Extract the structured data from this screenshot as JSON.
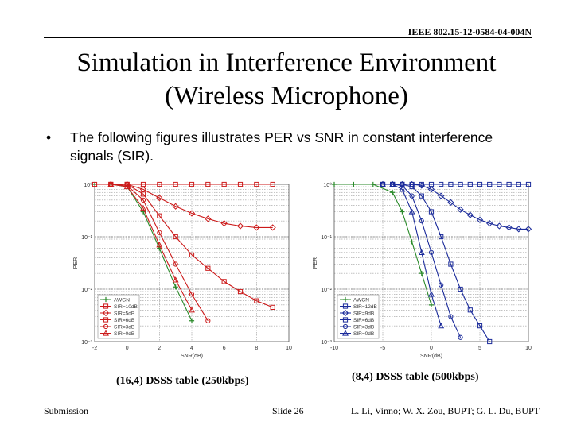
{
  "header": {
    "doc_id": "IEEE 802.15-12-0584-04-004N"
  },
  "title": {
    "line1": "Simulation in Interference Environment",
    "line2": "(Wireless Microphone)"
  },
  "bullet": {
    "symbol": "•",
    "text": "The following figures illustrates PER vs SNR in constant interference signals (SIR)."
  },
  "captions": {
    "left": "(16,4) DSSS table (250kbps)",
    "right": "(8,4) DSSS table (500kbps)"
  },
  "footer": {
    "left": "Submission",
    "center": "Slide 26",
    "right": "L. Li, Vinno; W. X. Zou, BUPT; G. L. Du, BUPT"
  },
  "chart_data": [
    {
      "type": "line",
      "xlabel": "SNR(dB)",
      "ylabel": "PER",
      "xlim": [
        -2,
        10
      ],
      "ylim": [
        0.001,
        1
      ],
      "log_y": true,
      "xticks": [
        "-2",
        "0",
        "2",
        "4",
        "6",
        "8",
        "10"
      ],
      "yticks": [
        "10⁰",
        "10⁻¹",
        "10⁻²",
        "10⁻³"
      ],
      "legend_position": "bottom-left",
      "series": [
        {
          "name": "AWGN",
          "color": "#2a8a2a",
          "marker": "plus",
          "x": [
            -2,
            -1,
            0,
            1,
            2,
            3,
            4
          ],
          "y": [
            1,
            1,
            0.9,
            0.3,
            0.06,
            0.011,
            0.0025
          ]
        },
        {
          "name": "SIR=10dB",
          "color": "#cc1a1a",
          "marker": "square",
          "x": [
            -2,
            -1,
            0,
            1,
            2,
            3,
            4,
            5,
            6,
            7,
            8,
            9
          ],
          "y": [
            1,
            1,
            1,
            1,
            1,
            1,
            1,
            1,
            1,
            1,
            1,
            1
          ]
        },
        {
          "name": "SIR=5dB",
          "color": "#cc1a1a",
          "marker": "diamond",
          "x": [
            -1,
            0,
            1,
            2,
            3,
            4,
            5,
            6,
            7,
            8,
            9
          ],
          "y": [
            1,
            1,
            0.8,
            0.55,
            0.38,
            0.28,
            0.22,
            0.18,
            0.16,
            0.15,
            0.15
          ]
        },
        {
          "name": "SIR=6dB",
          "color": "#cc1a1a",
          "marker": "square",
          "x": [
            -1,
            0,
            1,
            2,
            3,
            4,
            5,
            6,
            7,
            8,
            9
          ],
          "y": [
            1,
            1,
            0.65,
            0.25,
            0.1,
            0.045,
            0.025,
            0.014,
            0.009,
            0.006,
            0.0045
          ]
        },
        {
          "name": "SIR=3dB",
          "color": "#cc1a1a",
          "marker": "circle",
          "x": [
            -1,
            0,
            1,
            2,
            3,
            4,
            5
          ],
          "y": [
            1,
            0.95,
            0.5,
            0.12,
            0.03,
            0.008,
            0.0025
          ]
        },
        {
          "name": "SIR=0dB",
          "color": "#cc1a1a",
          "marker": "triangle",
          "x": [
            -1,
            0,
            1,
            2,
            3,
            4
          ],
          "y": [
            1,
            0.9,
            0.35,
            0.07,
            0.015,
            0.004
          ]
        }
      ]
    },
    {
      "type": "line",
      "xlabel": "SNR(dB)",
      "ylabel": "PER",
      "xlim": [
        -10,
        10
      ],
      "ylim": [
        0.001,
        1
      ],
      "log_y": true,
      "xticks": [
        "-10",
        "-5",
        "0",
        "5",
        "10"
      ],
      "yticks": [
        "10⁰",
        "10⁻¹",
        "10⁻²",
        "10⁻³"
      ],
      "legend_position": "bottom-left",
      "series": [
        {
          "name": "AWGN",
          "color": "#2a8a2a",
          "marker": "plus",
          "x": [
            -10,
            -8,
            -6,
            -4,
            -3,
            -2,
            -1,
            0
          ],
          "y": [
            1,
            1,
            1,
            0.7,
            0.3,
            0.08,
            0.02,
            0.005
          ]
        },
        {
          "name": "SIR=12dB",
          "color": "#1a2a9a",
          "marker": "square",
          "x": [
            -5,
            -4,
            -3,
            -2,
            -1,
            0,
            1,
            2,
            3,
            4,
            5,
            6,
            7,
            8,
            9,
            10
          ],
          "y": [
            1,
            1,
            1,
            1,
            1,
            1,
            1,
            1,
            1,
            1,
            1,
            1,
            1,
            1,
            1,
            1
          ]
        },
        {
          "name": "SIR=9dB",
          "color": "#1a2a9a",
          "marker": "diamond",
          "x": [
            -5,
            -4,
            -3,
            -2,
            -1,
            0,
            1,
            2,
            3,
            4,
            5,
            6,
            7,
            8,
            9,
            10
          ],
          "y": [
            1,
            1,
            1,
            1,
            0.95,
            0.8,
            0.6,
            0.45,
            0.33,
            0.26,
            0.21,
            0.18,
            0.16,
            0.15,
            0.14,
            0.14
          ]
        },
        {
          "name": "SIR=6dB",
          "color": "#1a2a9a",
          "marker": "square",
          "x": [
            -5,
            -4,
            -3,
            -2,
            -1,
            0,
            1,
            2,
            3,
            4,
            5,
            6
          ],
          "y": [
            1,
            1,
            1,
            0.9,
            0.6,
            0.3,
            0.1,
            0.03,
            0.01,
            0.004,
            0.002,
            0.001
          ]
        },
        {
          "name": "SIR=3dB",
          "color": "#1a2a9a",
          "marker": "circle",
          "x": [
            -5,
            -4,
            -3,
            -2,
            -1,
            0,
            1,
            2,
            3
          ],
          "y": [
            1,
            1,
            0.95,
            0.6,
            0.2,
            0.05,
            0.012,
            0.003,
            0.0012
          ]
        },
        {
          "name": "SIR=0dB",
          "color": "#1a2a9a",
          "marker": "triangle",
          "x": [
            -5,
            -4,
            -3,
            -2,
            -1,
            0,
            1
          ],
          "y": [
            1,
            1,
            0.8,
            0.3,
            0.05,
            0.008,
            0.002
          ]
        }
      ]
    }
  ]
}
